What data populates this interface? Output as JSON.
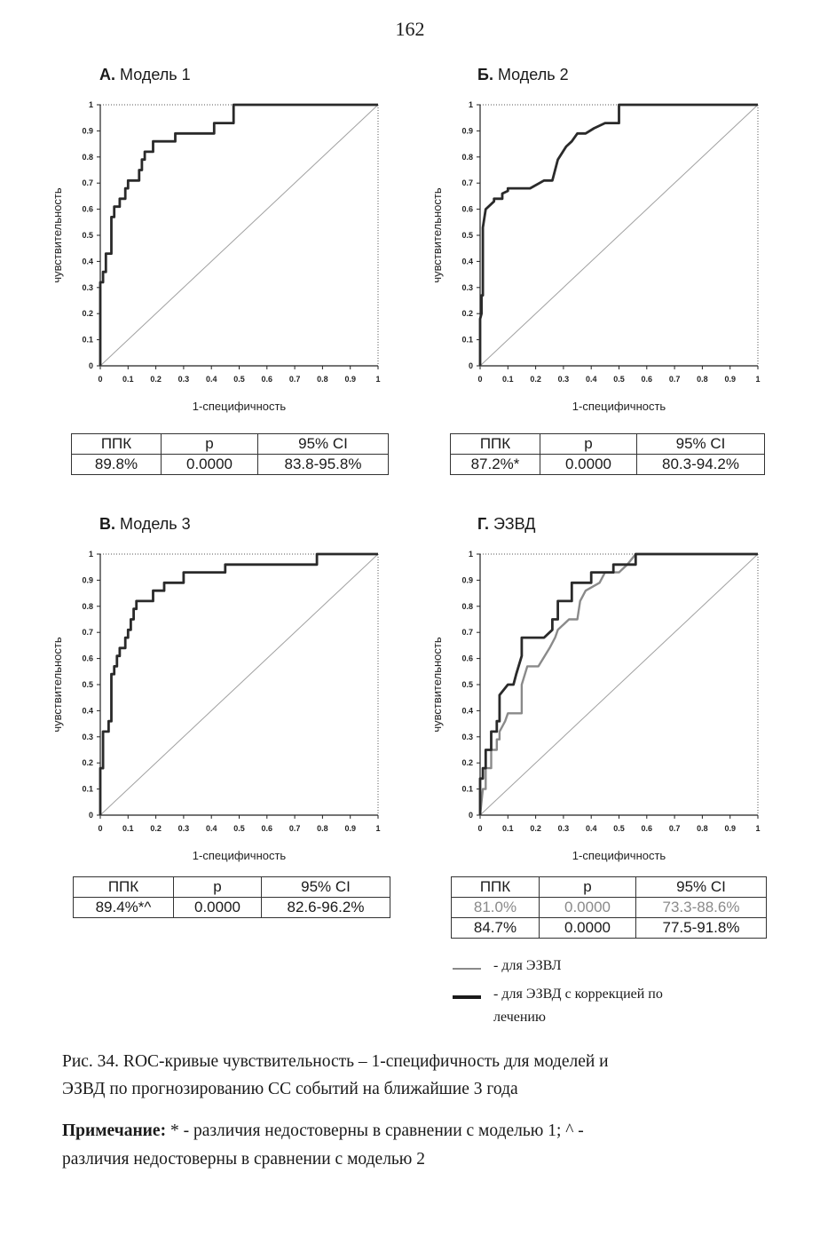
{
  "page_number": "162",
  "colors": {
    "curve": "#2a2a2a",
    "curve_grey": "#8a8a8a",
    "diagonal": "#a0a0a0"
  },
  "chart_data": [
    {
      "type": "line",
      "panel_letter": "А.",
      "title": "Модель 1",
      "xlabel": "1-специфичность",
      "ylabel": "чувствительность",
      "xlim": [
        0,
        1
      ],
      "ylim": [
        0,
        1
      ],
      "ticks": [
        "0",
        "0.1",
        "0.2",
        "0.3",
        "0.4",
        "0.5",
        "0.6",
        "0.7",
        "0.8",
        "0.9",
        "1"
      ],
      "series": [
        {
          "style": "dark",
          "x": [
            0,
            0,
            0.01,
            0.01,
            0.02,
            0.02,
            0.04,
            0.04,
            0.05,
            0.05,
            0.07,
            0.07,
            0.09,
            0.09,
            0.1,
            0.1,
            0.12,
            0.12,
            0.14,
            0.14,
            0.15,
            0.15,
            0.16,
            0.16,
            0.17,
            0.17,
            0.19,
            0.19,
            0.27,
            0.27,
            0.41,
            0.41,
            0.48,
            0.48,
            1
          ],
          "y": [
            0,
            0.32,
            0.32,
            0.36,
            0.36,
            0.43,
            0.43,
            0.57,
            0.57,
            0.61,
            0.61,
            0.64,
            0.64,
            0.68,
            0.68,
            0.71,
            0.71,
            0.71,
            0.71,
            0.75,
            0.75,
            0.79,
            0.79,
            0.82,
            0.82,
            0.82,
            0.82,
            0.86,
            0.86,
            0.89,
            0.89,
            0.93,
            0.93,
            1,
            1
          ]
        },
        {
          "style": "diagonal",
          "x": [
            0,
            1
          ],
          "y": [
            0,
            1
          ]
        }
      ]
    },
    {
      "type": "line",
      "panel_letter": "Б.",
      "title": "Модель 2",
      "xlabel": "1-специфичность",
      "ylabel": "чувствительность",
      "xlim": [
        0,
        1
      ],
      "ylim": [
        0,
        1
      ],
      "ticks": [
        "0",
        "0.1",
        "0.2",
        "0.3",
        "0.4",
        "0.5",
        "0.6",
        "0.7",
        "0.8",
        "0.9",
        "1"
      ],
      "series": [
        {
          "style": "dark",
          "x": [
            0,
            0,
            0.005,
            0.005,
            0.01,
            0.01,
            0.02,
            0.02,
            0.05,
            0.05,
            0.08,
            0.08,
            0.1,
            0.1,
            0.12,
            0.14,
            0.18,
            0.23,
            0.26,
            0.28,
            0.31,
            0.33,
            0.35,
            0.37,
            0.38,
            0.41,
            0.45,
            0.5,
            0.5,
            1
          ],
          "y": [
            0,
            0.18,
            0.2,
            0.27,
            0.27,
            0.53,
            0.6,
            0.6,
            0.63,
            0.64,
            0.64,
            0.66,
            0.67,
            0.68,
            0.68,
            0.68,
            0.68,
            0.71,
            0.71,
            0.79,
            0.84,
            0.86,
            0.89,
            0.89,
            0.89,
            0.91,
            0.93,
            0.93,
            1,
            1
          ]
        },
        {
          "style": "diagonal",
          "x": [
            0,
            1
          ],
          "y": [
            0,
            1
          ]
        }
      ]
    },
    {
      "type": "line",
      "panel_letter": "В.",
      "title": "Модель 3",
      "xlabel": "1-специфичность",
      "ylabel": "чувствительность",
      "xlim": [
        0,
        1
      ],
      "ylim": [
        0,
        1
      ],
      "ticks": [
        "0",
        "0.1",
        "0.2",
        "0.3",
        "0.4",
        "0.5",
        "0.6",
        "0.7",
        "0.8",
        "0.9",
        "1"
      ],
      "series": [
        {
          "style": "dark",
          "x": [
            0,
            0,
            0.01,
            0.01,
            0.02,
            0.02,
            0.03,
            0.03,
            0.04,
            0.04,
            0.05,
            0.05,
            0.06,
            0.06,
            0.07,
            0.07,
            0.09,
            0.09,
            0.1,
            0.1,
            0.11,
            0.11,
            0.12,
            0.12,
            0.13,
            0.13,
            0.19,
            0.19,
            0.23,
            0.23,
            0.26,
            0.26,
            0.3,
            0.3,
            0.35,
            0.35,
            0.45,
            0.45,
            0.78,
            0.78,
            1
          ],
          "y": [
            0,
            0.18,
            0.18,
            0.32,
            0.32,
            0.32,
            0.32,
            0.36,
            0.36,
            0.54,
            0.54,
            0.57,
            0.57,
            0.61,
            0.61,
            0.64,
            0.64,
            0.68,
            0.68,
            0.71,
            0.71,
            0.75,
            0.75,
            0.79,
            0.79,
            0.82,
            0.82,
            0.86,
            0.86,
            0.89,
            0.89,
            0.89,
            0.89,
            0.93,
            0.93,
            0.93,
            0.93,
            0.96,
            0.96,
            1,
            1
          ]
        },
        {
          "style": "diagonal",
          "x": [
            0,
            1
          ],
          "y": [
            0,
            1
          ]
        }
      ]
    },
    {
      "type": "line",
      "panel_letter": "Г.",
      "title": "ЭЗВД",
      "xlabel": "1-специфичность",
      "ylabel": "чувствительность",
      "xlim": [
        0,
        1
      ],
      "ylim": [
        0,
        1
      ],
      "ticks": [
        "0",
        "0.1",
        "0.2",
        "0.3",
        "0.4",
        "0.5",
        "0.6",
        "0.7",
        "0.8",
        "0.9",
        "1"
      ],
      "series": [
        {
          "name": "для ЭЗВЛ",
          "style": "grey",
          "x": [
            0,
            0.01,
            0.02,
            0.02,
            0.04,
            0.04,
            0.06,
            0.06,
            0.07,
            0.07,
            0.09,
            0.1,
            0.15,
            0.15,
            0.17,
            0.21,
            0.25,
            0.27,
            0.28,
            0.32,
            0.35,
            0.36,
            0.38,
            0.43,
            0.45,
            0.5,
            0.53,
            0.53,
            0.56,
            0.57,
            1
          ],
          "y": [
            0,
            0.1,
            0.1,
            0.18,
            0.18,
            0.25,
            0.25,
            0.29,
            0.29,
            0.32,
            0.36,
            0.39,
            0.39,
            0.5,
            0.57,
            0.57,
            0.64,
            0.68,
            0.71,
            0.75,
            0.75,
            0.82,
            0.86,
            0.89,
            0.93,
            0.93,
            0.96,
            0.96,
            1,
            1,
            1
          ]
        },
        {
          "name": "для ЭЗВД с коррекцией по лечению",
          "style": "dark",
          "x": [
            0,
            0,
            0.01,
            0.01,
            0.02,
            0.02,
            0.04,
            0.04,
            0.06,
            0.06,
            0.07,
            0.07,
            0.1,
            0.1,
            0.12,
            0.13,
            0.15,
            0.15,
            0.23,
            0.26,
            0.26,
            0.28,
            0.28,
            0.3,
            0.33,
            0.33,
            0.4,
            0.4,
            0.48,
            0.48,
            0.53,
            0.53,
            0.56,
            0.56,
            1
          ],
          "y": [
            0,
            0.14,
            0.14,
            0.18,
            0.18,
            0.25,
            0.25,
            0.32,
            0.32,
            0.36,
            0.36,
            0.46,
            0.5,
            0.5,
            0.5,
            0.54,
            0.61,
            0.68,
            0.68,
            0.71,
            0.75,
            0.75,
            0.82,
            0.82,
            0.82,
            0.89,
            0.89,
            0.93,
            0.93,
            0.96,
            0.96,
            0.96,
            0.96,
            1,
            1
          ]
        },
        {
          "style": "diagonal",
          "x": [
            0,
            1
          ],
          "y": [
            0,
            1
          ]
        }
      ]
    }
  ],
  "tables": [
    {
      "headers": [
        "ППК",
        "p",
        "95% CI"
      ],
      "rows": [
        [
          "89.8%",
          "0.0000",
          "83.8-95.8%"
        ]
      ]
    },
    {
      "headers": [
        "ППК",
        "p",
        "95% CI"
      ],
      "rows": [
        [
          "87.2%*",
          "0.0000",
          "80.3-94.2%"
        ]
      ]
    },
    {
      "headers": [
        "ППК",
        "p",
        "95% CI"
      ],
      "rows": [
        [
          "89.4%*^",
          "0.0000",
          "82.6-96.2%"
        ]
      ]
    },
    {
      "headers": [
        "ППК",
        "p",
        "95% CI"
      ],
      "rows": [
        [
          "81.0%",
          "0.0000",
          "73.3-88.6%"
        ],
        [
          "84.7%",
          "0.0000",
          "77.5-91.8%"
        ]
      ]
    }
  ],
  "legend": {
    "grey_label": "- для ЭЗВЛ",
    "dark_label_line1": "- для ЭЗВД с коррекцией по",
    "dark_label_line2": "лечению"
  },
  "caption": {
    "line1": "Рис. 34. ROC-кривые чувствительность – 1-специфичность для моделей и",
    "line2": "ЭЗВД по прогнозированию СС событий на ближайшие 3 года"
  },
  "note": {
    "label": "Примечание:",
    "line1_rest": " * - различия недостоверны в сравнении с моделью 1; ^ -",
    "line2": "различия недостоверны в сравнении с моделью 2"
  }
}
